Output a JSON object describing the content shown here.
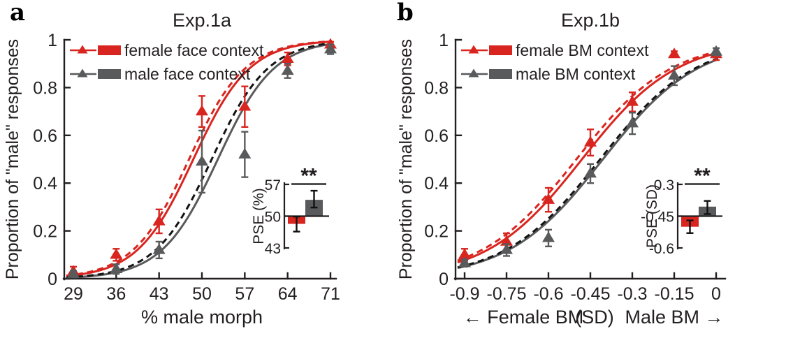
{
  "colors": {
    "red": "#d9251f",
    "gray": "#595a5c",
    "dashed_black": "#141414",
    "axis": "#231f20"
  },
  "chart_data": [
    {
      "id": "exp1a",
      "type": "line",
      "panel_letter": "a",
      "title": "Exp.1a",
      "ylabel": "Proportion of \"male\" responses",
      "xlabel_parts": [
        {
          "text": "% male morph",
          "x": 50
        }
      ],
      "xlim": [
        29,
        71
      ],
      "ylim": [
        0,
        1
      ],
      "xticks": [
        29,
        36,
        43,
        50,
        57,
        64,
        71
      ],
      "xtick_labels": [
        "29",
        "36",
        "43",
        "50",
        "57",
        "64",
        "71"
      ],
      "yticks": [
        0,
        0.2,
        0.4,
        0.6,
        0.8,
        1
      ],
      "ytick_labels": [
        "0",
        "0.2",
        "0.4",
        "0.6",
        "0.8",
        "1"
      ],
      "legend": [
        {
          "series": "female",
          "color_key": "red",
          "label": "female face context"
        },
        {
          "series": "male",
          "color_key": "gray",
          "label": "male face context"
        }
      ],
      "series": [
        {
          "name": "female",
          "color_key": "red",
          "x": [
            29,
            36,
            43,
            50,
            57,
            64,
            71
          ],
          "y": [
            0.03,
            0.1,
            0.24,
            0.7,
            0.72,
            0.92,
            0.98
          ],
          "err": [
            0.02,
            0.025,
            0.05,
            0.065,
            0.085,
            0.027,
            0.012
          ]
        },
        {
          "name": "male",
          "color_key": "gray",
          "x": [
            29,
            36,
            43,
            50,
            57,
            64,
            71
          ],
          "y": [
            0.02,
            0.04,
            0.12,
            0.49,
            0.52,
            0.87,
            0.96
          ],
          "err": [
            0.012,
            0.02,
            0.035,
            0.13,
            0.095,
            0.03,
            0.02
          ]
        }
      ],
      "curves": [
        {
          "series": "female",
          "style": "solid",
          "color_key": "red",
          "pse": 48.6,
          "slope": 4.6
        },
        {
          "series": "male",
          "style": "solid",
          "color_key": "gray",
          "pse": 52.6,
          "slope": 4.6
        },
        {
          "series": "female",
          "style": "dashed",
          "color_key": "red",
          "pse": 47.9,
          "slope": 4.6
        },
        {
          "series": "male",
          "style": "dashed",
          "color_key": "dashed_black",
          "pse": 51.6,
          "slope": 4.6
        }
      ],
      "inset": {
        "ylabel": "PSE (%)",
        "ylim": [
          43,
          57
        ],
        "yticks": [
          43,
          50,
          57
        ],
        "ytick_labels": [
          "43",
          "50",
          "57"
        ],
        "baseline": 50,
        "bars": [
          {
            "series": "female",
            "color_key": "red",
            "value": 48.3,
            "ci": [
              46.6,
              49.9
            ]
          },
          {
            "series": "male",
            "color_key": "gray",
            "value": 53.6,
            "ci": [
              51.9,
              55.6
            ]
          }
        ],
        "significance": "**"
      }
    },
    {
      "id": "exp1b",
      "type": "line",
      "panel_letter": "b",
      "title": "Exp.1b",
      "ylabel": "Proportion of \"male\" responses",
      "xlabel_parts": [
        {
          "text": "← Female BM",
          "x": -0.69
        },
        {
          "text": "(SD)",
          "x": -0.435
        },
        {
          "text": "Male BM →",
          "x": -0.15
        }
      ],
      "xlim": [
        -0.9,
        0
      ],
      "ylim": [
        0,
        1
      ],
      "xticks": [
        -0.9,
        -0.75,
        -0.6,
        -0.45,
        -0.3,
        -0.15,
        0
      ],
      "xtick_labels": [
        "-0.9",
        "-0.75",
        "-0.6",
        "-0.45",
        "-0.3",
        "-0.15",
        "0"
      ],
      "yticks": [
        0,
        0.2,
        0.4,
        0.6,
        0.8,
        1
      ],
      "ytick_labels": [
        "0",
        "0.2",
        "0.4",
        "0.6",
        "0.8",
        "1"
      ],
      "legend": [
        {
          "series": "female",
          "color_key": "red",
          "label": "female BM context"
        },
        {
          "series": "male",
          "color_key": "gray",
          "label": "male BM context"
        }
      ],
      "series": [
        {
          "name": "female",
          "color_key": "red",
          "x": [
            -0.9,
            -0.75,
            -0.6,
            -0.45,
            -0.3,
            -0.15,
            0
          ],
          "y": [
            0.1,
            0.155,
            0.33,
            0.57,
            0.74,
            0.94,
            0.94
          ],
          "err": [
            0.025,
            0.035,
            0.05,
            0.055,
            0.04,
            0.012,
            0.025
          ]
        },
        {
          "name": "male",
          "color_key": "gray",
          "x": [
            -0.9,
            -0.75,
            -0.6,
            -0.45,
            -0.3,
            -0.15,
            0
          ],
          "y": [
            0.065,
            0.12,
            0.17,
            0.44,
            0.65,
            0.85,
            0.95
          ],
          "err": [
            0.015,
            0.025,
            0.035,
            0.04,
            0.045,
            0.04,
            0.015
          ]
        }
      ],
      "curves": [
        {
          "series": "female",
          "style": "solid",
          "color_key": "red",
          "pse": -0.48,
          "slope": 0.17
        },
        {
          "series": "male",
          "style": "solid",
          "color_key": "gray",
          "pse": -0.405,
          "slope": 0.17
        },
        {
          "series": "female",
          "style": "dashed",
          "color_key": "red",
          "pse": -0.5,
          "slope": 0.17
        },
        {
          "series": "male",
          "style": "dashed",
          "color_key": "dashed_black",
          "pse": -0.415,
          "slope": 0.17
        }
      ],
      "inset": {
        "ylabel": "PSE (SD)",
        "ylim": [
          -0.6,
          -0.3
        ],
        "yticks": [
          -0.6,
          -0.45,
          -0.3
        ],
        "ytick_labels": [
          "-0.6",
          "-0.45",
          "-0.3"
        ],
        "baseline": -0.45,
        "bars": [
          {
            "series": "female",
            "color_key": "red",
            "value": -0.5,
            "ci": [
              -0.53,
              -0.47
            ]
          },
          {
            "series": "male",
            "color_key": "gray",
            "value": -0.405,
            "ci": [
              -0.44,
              -0.378
            ]
          }
        ],
        "significance": "**"
      }
    }
  ]
}
